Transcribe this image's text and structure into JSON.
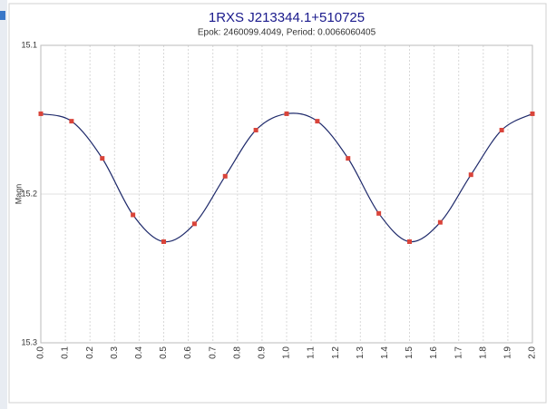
{
  "chart_data": {
    "type": "line",
    "title": "1RXS J213344.1+510725",
    "subtitle": "Epok: 2460099.4049, Period: 0.0066060405",
    "ylabel": "Magn",
    "x": [
      0,
      0.125,
      0.25,
      0.375,
      0.5,
      0.625,
      0.75,
      0.875,
      1.0,
      1.125,
      1.25,
      1.375,
      1.5,
      1.625,
      1.75,
      1.875,
      2.0
    ],
    "series": [
      {
        "line_color": "#1f2a6b",
        "marker_color": "#d9443a",
        "values": [
          15.146,
          15.151,
          15.176,
          15.214,
          15.232,
          15.22,
          15.188,
          15.157,
          15.146,
          15.151,
          15.176,
          15.213,
          15.232,
          15.219,
          15.187,
          15.157,
          15.146
        ]
      }
    ],
    "xlim": [
      0,
      2
    ],
    "xticks": [
      {
        "value": 0,
        "label": "0.0"
      },
      0.1,
      0.2,
      0.3,
      0.4,
      0.5,
      0.6,
      0.7,
      0.8,
      0.9,
      {
        "value": 1,
        "label": "1.0"
      },
      1.1,
      1.2,
      1.3,
      1.4,
      1.5,
      1.6,
      1.7,
      1.8,
      1.9,
      {
        "value": 2,
        "label": "2.0"
      }
    ],
    "ylim": [
      15.1,
      15.3
    ],
    "yticks": [
      15.1,
      15.2,
      15.3
    ],
    "y_inverted": true,
    "grid": true
  }
}
